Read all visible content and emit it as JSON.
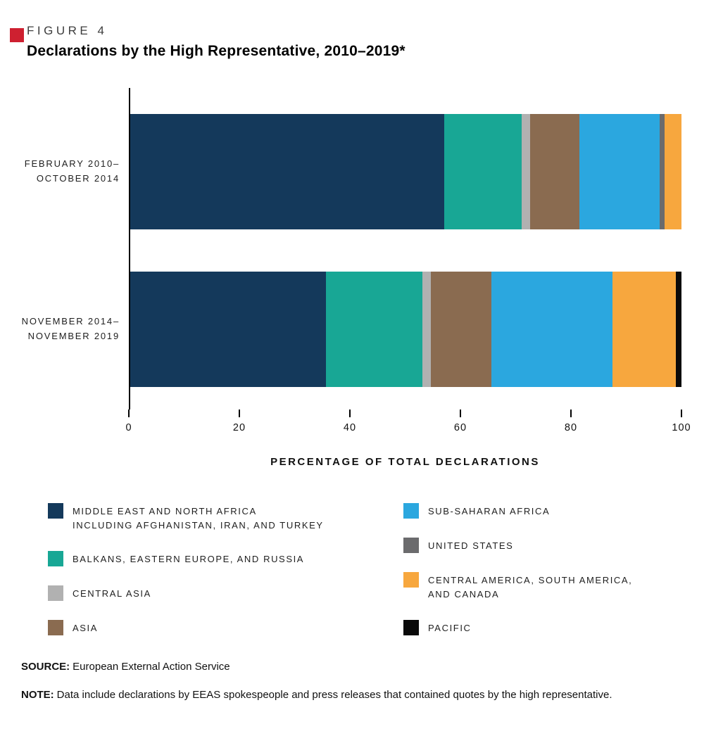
{
  "page": {
    "figure_label": "FIGURE 4",
    "title": "Declarations by the High Representative, 2010–2019*",
    "accent_color": "#ce2030"
  },
  "chart_data": {
    "type": "bar",
    "orientation": "horizontal",
    "stacked": true,
    "x_axis_title": "PERCENTAGE OF TOTAL DECLARATIONS",
    "xlim": [
      0,
      100
    ],
    "xticks": [
      0,
      20,
      40,
      60,
      80,
      100
    ],
    "grid": false,
    "legend_position": "bottom",
    "categories": [
      {
        "lines": [
          "FEBRUARY 2010–",
          "OCTOBER 2014"
        ]
      },
      {
        "lines": [
          "NOVEMBER 2014–",
          "NOVEMBER 2019"
        ]
      }
    ],
    "series": [
      {
        "id": "middle-east-north-africa",
        "name": "MIDDLE EAST AND NORTH AFRICA INCLUDING AFGHANISTAN, IRAN, AND TURKEY",
        "legend_lines": [
          "MIDDLE EAST AND NORTH AFRICA",
          "INCLUDING AFGHANISTAN, IRAN, AND TURKEY"
        ],
        "color": "#14395b",
        "values": [
          57,
          35.5
        ]
      },
      {
        "id": "balkans-eastern-europe-russia",
        "name": "BALKANS, EASTERN EUROPE, AND RUSSIA",
        "legend_lines": [
          "BALKANS, EASTERN EUROPE, AND RUSSIA"
        ],
        "color": "#18a795",
        "values": [
          14,
          17.5
        ]
      },
      {
        "id": "central-asia",
        "name": "CENTRAL ASIA",
        "legend_lines": [
          "CENTRAL ASIA"
        ],
        "color": "#b1b1b1",
        "values": [
          1.5,
          1.5
        ]
      },
      {
        "id": "asia",
        "name": "ASIA",
        "legend_lines": [
          "ASIA"
        ],
        "color": "#8a6b50",
        "values": [
          9,
          11
        ]
      },
      {
        "id": "sub-saharan-africa",
        "name": "SUB-SAHARAN AFRICA",
        "legend_lines": [
          "SUB-SAHARAN AFRICA"
        ],
        "color": "#2ba7df",
        "values": [
          14.5,
          22
        ]
      },
      {
        "id": "united-states",
        "name": "UNITED STATES",
        "legend_lines": [
          "UNITED STATES"
        ],
        "color": "#6b6b6d",
        "values": [
          1,
          0
        ]
      },
      {
        "id": "central-america-south-america-canada",
        "name": "CENTRAL AMERICA, SOUTH AMERICA, AND CANADA",
        "legend_lines": [
          "CENTRAL AMERICA, SOUTH AMERICA,",
          "AND CANADA"
        ],
        "color": "#f7a73e",
        "values": [
          3,
          11.5
        ]
      },
      {
        "id": "pacific",
        "name": "PACIFIC",
        "legend_lines": [
          "PACIFIC"
        ],
        "color": "#0a0a0a",
        "values": [
          0,
          1
        ]
      }
    ],
    "legend_columns": [
      [
        0,
        1,
        2,
        3
      ],
      [
        4,
        5,
        6,
        7
      ]
    ]
  },
  "footer": {
    "source_label": "SOURCE:",
    "source_text": "European External Action Service",
    "note_label": "NOTE:",
    "note_text": "Data include declarations by EEAS spokespeople and press releases that contained quotes by the high representative."
  }
}
